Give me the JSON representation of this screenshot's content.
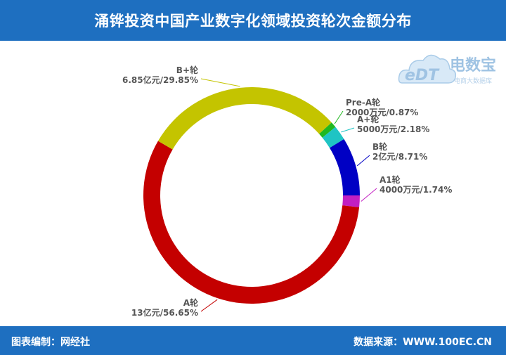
{
  "header": {
    "title": "涌铧投资中国产业数字化领域投资轮次金额分布"
  },
  "footer": {
    "left": "图表编制：网经社",
    "right": "数据来源：WWW.100EC.CN"
  },
  "watermark": {
    "logo_text": "eDT",
    "brand": "电数宝",
    "sub": "电商大数据库"
  },
  "chart_data": {
    "type": "pie",
    "variant": "donut",
    "title": "涌铧投资中国产业数字化领域投资轮次金额分布",
    "slices": [
      {
        "name": "A1轮",
        "amount": "4000万元",
        "percent": 1.74,
        "color": "#c21fc2"
      },
      {
        "name": "A轮",
        "amount": "13亿元",
        "percent": 56.65,
        "color": "#c40000"
      },
      {
        "name": "B+轮",
        "amount": "6.85亿元",
        "percent": 29.85,
        "color": "#c4c400"
      },
      {
        "name": "Pre-A轮",
        "amount": "2000万元",
        "percent": 0.87,
        "color": "#1fb81f"
      },
      {
        "name": "A+轮",
        "amount": "5000万元",
        "percent": 2.18,
        "color": "#1fc4c4"
      },
      {
        "name": "B轮",
        "amount": "2亿元",
        "percent": 8.71,
        "color": "#0000c4"
      }
    ]
  }
}
